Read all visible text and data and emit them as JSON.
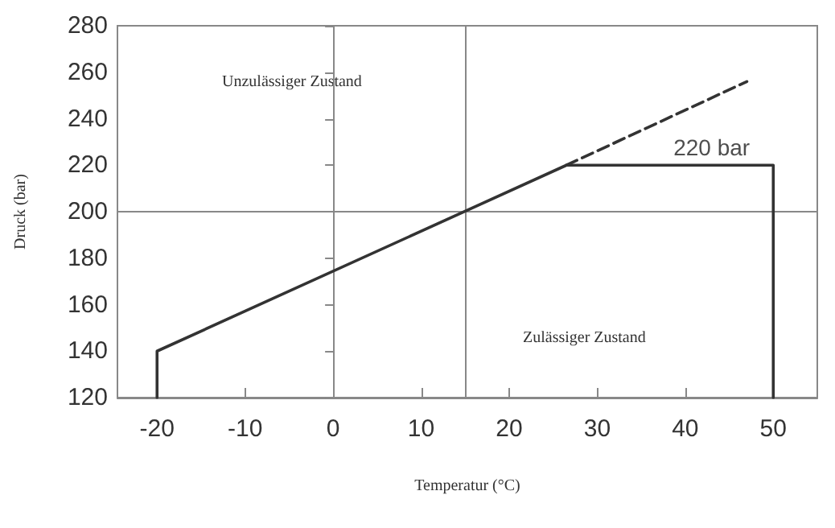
{
  "chart_data": {
    "type": "line",
    "xlabel": "Temperatur (°C)",
    "ylabel": "Druck (bar)",
    "xlim": [
      -24.5,
      55
    ],
    "xticks": [
      -20,
      -10,
      0,
      10,
      20,
      30,
      40,
      50
    ],
    "ylim": [
      120,
      280
    ],
    "yticks": [
      120,
      140,
      160,
      180,
      200,
      220,
      240,
      260,
      280
    ],
    "series": [
      {
        "color": "#333333",
        "x": [
          -20,
          -20,
          26.5,
          50,
          50
        ],
        "values": [
          120,
          140,
          220,
          220,
          120
        ],
        "line_style": "solid"
      },
      {
        "color": "#333333",
        "x": [
          26.5,
          47
        ],
        "values": [
          220,
          256
        ],
        "line_style": "dashed"
      }
    ],
    "ref_lines": [
      {
        "axis": "x",
        "value": 0,
        "color": "#888888"
      },
      {
        "axis": "x",
        "value": 15,
        "color": "#888888"
      },
      {
        "axis": "y",
        "value": 200,
        "color": "#888888"
      }
    ],
    "annotations": [
      "Unzulässiger Zustand",
      "Zulässiger Zustand",
      {
        "text": "220 bar",
        "x": 43,
        "y": 220
      }
    ],
    "marker": "none",
    "grid": false
  }
}
